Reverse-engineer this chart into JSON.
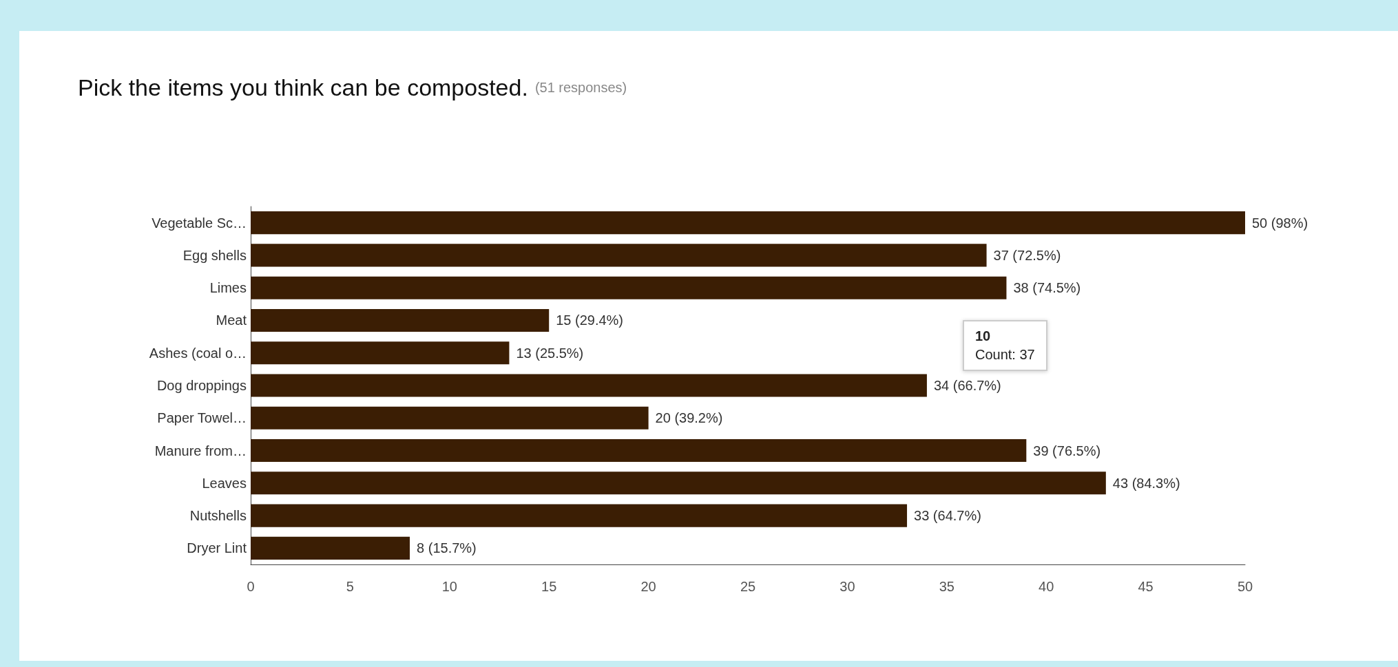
{
  "chart_data": {
    "type": "bar",
    "orientation": "horizontal",
    "title": "Pick the items you think can be composted.",
    "subtitle": "(51 responses)",
    "categories": [
      "Vegetable Sc…",
      "Egg shells",
      "Limes",
      "Meat",
      "Ashes (coal o…",
      "Dog droppings",
      "Paper Towel…",
      "Manure from…",
      "Leaves",
      "Nutshells",
      "Dryer Lint"
    ],
    "values": [
      50,
      37,
      38,
      15,
      13,
      34,
      20,
      39,
      43,
      33,
      8
    ],
    "value_labels": [
      "50 (98%)",
      "37 (72.5%)",
      "38 (74.5%)",
      "15 (29.4%)",
      "13 (25.5%)",
      "34 (66.7%)",
      "20 (39.2%)",
      "39 (76.5%)",
      "43 (84.3%)",
      "33 (64.7%)",
      "8 (15.7%)"
    ],
    "color": "#3b1e04",
    "xlim": [
      0,
      50
    ],
    "xticks": [
      0,
      5,
      10,
      15,
      20,
      25,
      30,
      35,
      40,
      45,
      50
    ],
    "grid": false,
    "annotations": [
      "10",
      "Count: 37"
    ]
  }
}
